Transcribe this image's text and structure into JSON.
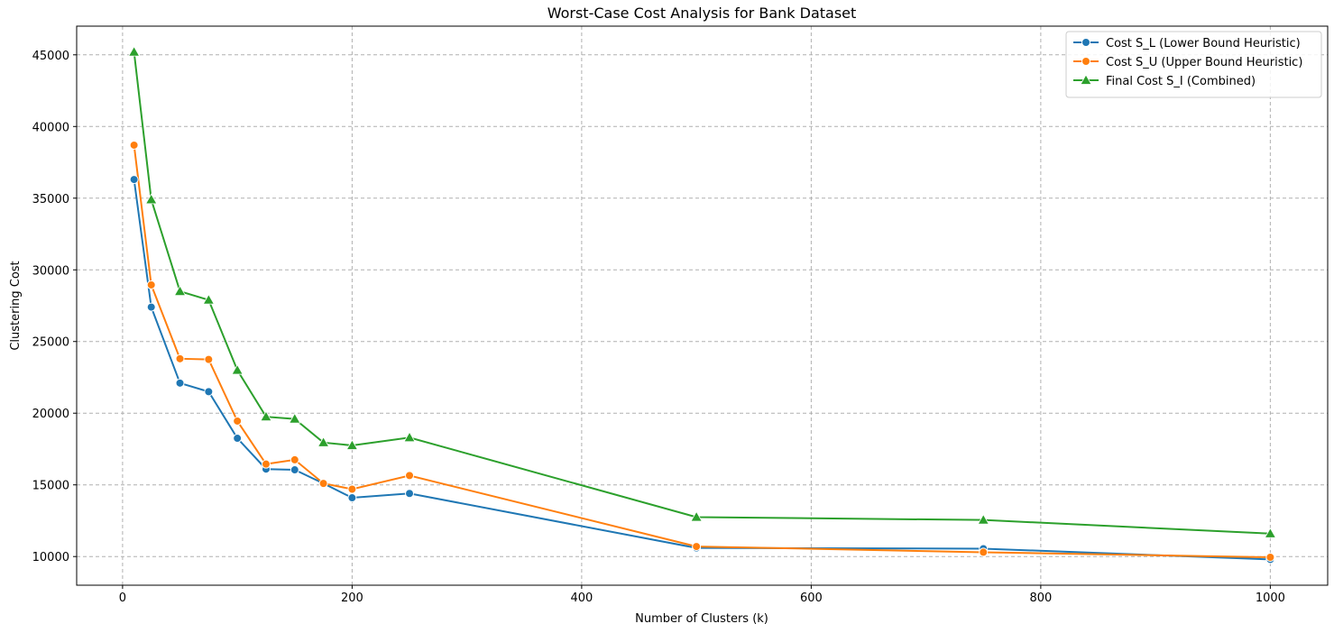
{
  "chart_data": {
    "type": "line",
    "title": "Worst-Case Cost Analysis for Bank Dataset",
    "xlabel": "Number of Clusters (k)",
    "ylabel": "Clustering Cost",
    "xlim": [
      -40,
      1050
    ],
    "ylim": [
      8000,
      47000
    ],
    "xticks": [
      0,
      200,
      400,
      600,
      800,
      1000
    ],
    "yticks": [
      10000,
      15000,
      20000,
      25000,
      30000,
      35000,
      40000,
      45000
    ],
    "grid": true,
    "legend_position": "top-right",
    "x": [
      10,
      25,
      50,
      75,
      100,
      125,
      150,
      175,
      200,
      250,
      500,
      750,
      1000
    ],
    "series": [
      {
        "name": "Cost S_L (Lower Bound Heuristic)",
        "color": "#1f77b4",
        "marker": "circle",
        "values": [
          36300,
          27400,
          22100,
          21500,
          18250,
          16100,
          16050,
          15100,
          14100,
          14400,
          10600,
          10550,
          9800
        ]
      },
      {
        "name": "Cost S_U (Upper Bound Heuristic)",
        "color": "#ff7f0e",
        "marker": "circle",
        "values": [
          38700,
          28950,
          23800,
          23750,
          19450,
          16450,
          16750,
          15100,
          14700,
          15650,
          10700,
          10300,
          9950
        ]
      },
      {
        "name": "Final Cost S_I (Combined)",
        "color": "#2ca02c",
        "marker": "triangle",
        "values": [
          45200,
          34900,
          28500,
          27900,
          23000,
          19750,
          19600,
          17950,
          17750,
          18300,
          12750,
          12550,
          11600
        ]
      }
    ]
  }
}
